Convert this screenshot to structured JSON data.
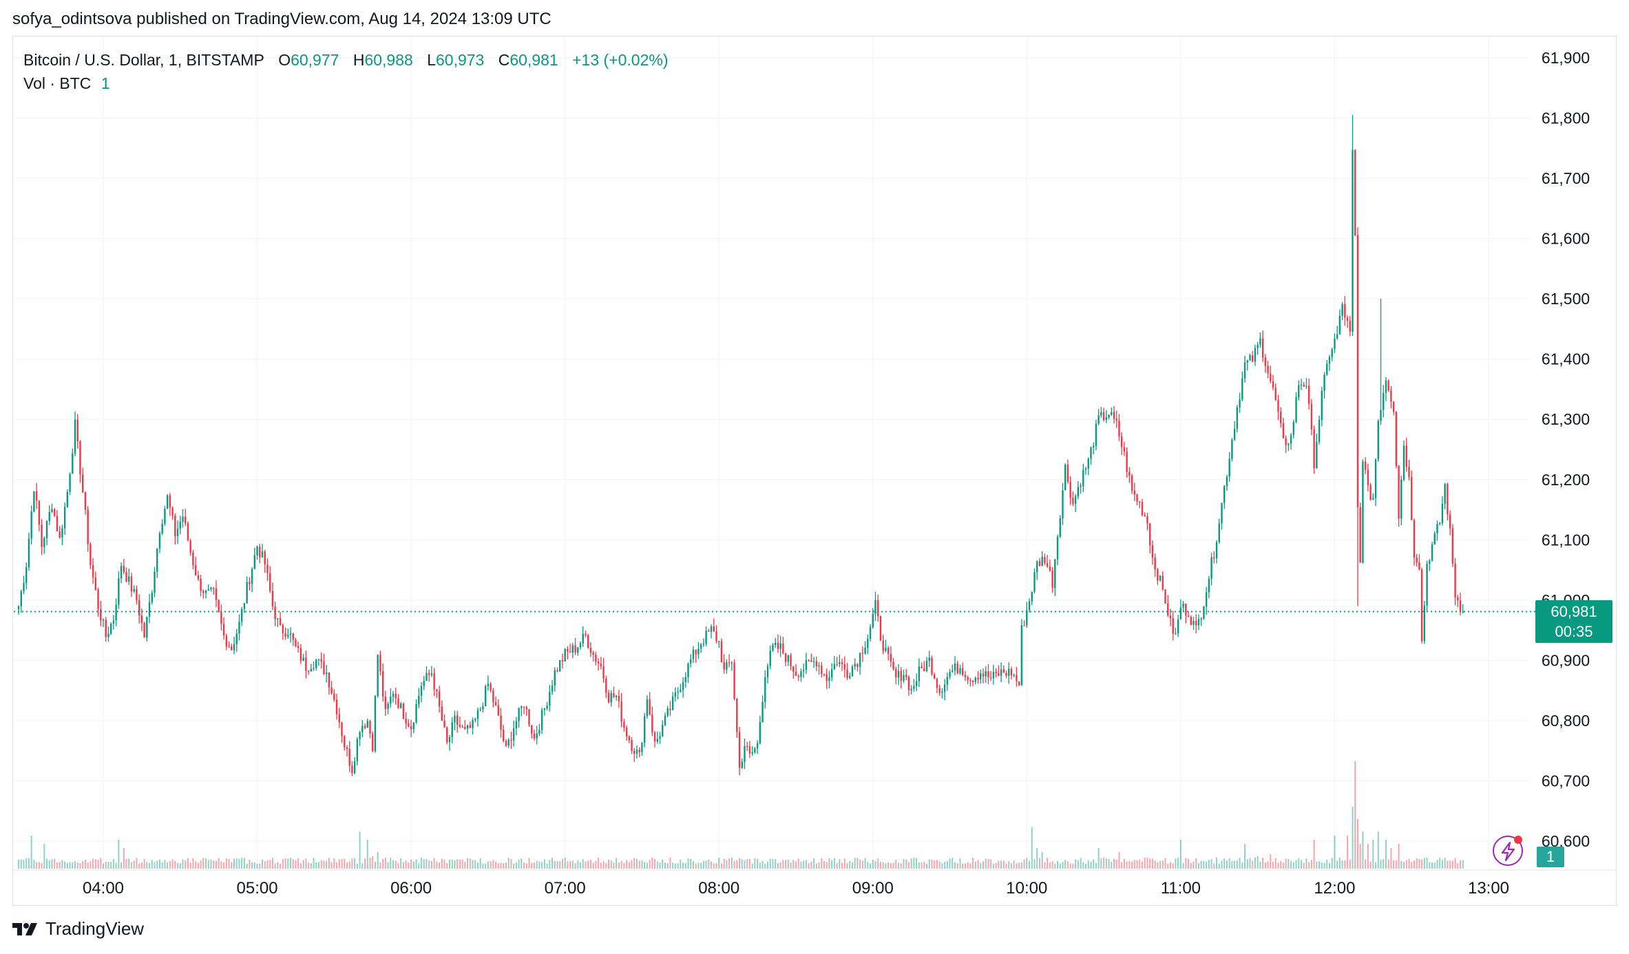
{
  "header": {
    "publisher_text": "sofya_odintsova published on TradingView.com, Aug 14, 2024 13:09 UTC"
  },
  "legend": {
    "symbol": "Bitcoin / U.S. Dollar, 1, BITSTAMP",
    "open_label": "O",
    "open_value": "60,977",
    "high_label": "H",
    "high_value": "60,988",
    "low_label": "L",
    "low_value": "60,973",
    "close_label": "C",
    "close_value": "60,981",
    "change": "+13 (+0.02%)",
    "volume_label": "Vol · BTC",
    "volume_value": "1"
  },
  "price_tag": {
    "price": "60,981",
    "countdown": "00:35"
  },
  "volume_tag": "1",
  "footer": {
    "brand": "TradingView"
  },
  "colors": {
    "up": "#089981",
    "down": "#f23645",
    "grid": "#f0f3fa",
    "axis_text": "#131722"
  },
  "chart_data": {
    "type": "candlestick",
    "interval_minutes": 1,
    "y_ticks": [
      "61,900",
      "61,800",
      "61,700",
      "61,600",
      "61,500",
      "61,400",
      "61,300",
      "61,200",
      "61,100",
      "61,000",
      "60,900",
      "60,800",
      "60,700",
      "60,600"
    ],
    "y_tick_values": [
      61900,
      61800,
      61700,
      61600,
      61500,
      61400,
      61300,
      61200,
      61100,
      61000,
      60900,
      60800,
      60700,
      60600
    ],
    "x_ticks": [
      "04:00",
      "05:00",
      "06:00",
      "07:00",
      "08:00",
      "09:00",
      "10:00",
      "11:00",
      "12:00",
      "13:00"
    ],
    "x_tick_minutes": [
      240,
      300,
      360,
      420,
      480,
      540,
      600,
      660,
      720,
      780
    ],
    "ylim": [
      60560,
      61960
    ],
    "xlim": [
      206,
      797
    ],
    "last_price": 60981,
    "waypoints": [
      [
        207,
        60990
      ],
      [
        210,
        61060
      ],
      [
        213,
        61190
      ],
      [
        216,
        61090
      ],
      [
        220,
        61160
      ],
      [
        223,
        61100
      ],
      [
        226,
        61180
      ],
      [
        229,
        61290
      ],
      [
        232,
        61180
      ],
      [
        235,
        61060
      ],
      [
        238,
        60990
      ],
      [
        241,
        60940
      ],
      [
        244,
        60970
      ],
      [
        247,
        61060
      ],
      [
        250,
        61030
      ],
      [
        253,
        61000
      ],
      [
        256,
        60940
      ],
      [
        259,
        61020
      ],
      [
        262,
        61120
      ],
      [
        265,
        61170
      ],
      [
        268,
        61110
      ],
      [
        271,
        61140
      ],
      [
        274,
        61080
      ],
      [
        277,
        61030
      ],
      [
        280,
        61010
      ],
      [
        283,
        61010
      ],
      [
        287,
        60940
      ],
      [
        290,
        60920
      ],
      [
        293,
        60960
      ],
      [
        296,
        61020
      ],
      [
        300,
        61090
      ],
      [
        303,
        61060
      ],
      [
        306,
        60990
      ],
      [
        309,
        60950
      ],
      [
        312,
        60950
      ],
      [
        315,
        60920
      ],
      [
        319,
        60890
      ],
      [
        323,
        60900
      ],
      [
        327,
        60880
      ],
      [
        331,
        60820
      ],
      [
        334,
        60760
      ],
      [
        337,
        60720
      ],
      [
        340,
        60790
      ],
      [
        343,
        60800
      ],
      [
        345,
        60760
      ],
      [
        347,
        60910
      ],
      [
        350,
        60810
      ],
      [
        353,
        60850
      ],
      [
        356,
        60820
      ],
      [
        360,
        60790
      ],
      [
        364,
        60860
      ],
      [
        368,
        60880
      ],
      [
        371,
        60820
      ],
      [
        374,
        60760
      ],
      [
        377,
        60800
      ],
      [
        381,
        60780
      ],
      [
        384,
        60790
      ],
      [
        387,
        60820
      ],
      [
        390,
        60860
      ],
      [
        393,
        60820
      ],
      [
        397,
        60750
      ],
      [
        400,
        60790
      ],
      [
        404,
        60830
      ],
      [
        408,
        60770
      ],
      [
        412,
        60820
      ],
      [
        416,
        60880
      ],
      [
        420,
        60910
      ],
      [
        424,
        60920
      ],
      [
        428,
        60940
      ],
      [
        431,
        60910
      ],
      [
        434,
        60890
      ],
      [
        437,
        60840
      ],
      [
        440,
        60840
      ],
      [
        443,
        60790
      ],
      [
        446,
        60760
      ],
      [
        449,
        60740
      ],
      [
        452,
        60840
      ],
      [
        455,
        60760
      ],
      [
        458,
        60790
      ],
      [
        461,
        60820
      ],
      [
        465,
        60860
      ],
      [
        469,
        60900
      ],
      [
        473,
        60930
      ],
      [
        477,
        60950
      ],
      [
        480,
        60930
      ],
      [
        482,
        60880
      ],
      [
        485,
        60900
      ],
      [
        488,
        60720
      ],
      [
        490,
        60760
      ],
      [
        492,
        60740
      ],
      [
        495,
        60760
      ],
      [
        498,
        60880
      ],
      [
        501,
        60920
      ],
      [
        504,
        60920
      ],
      [
        507,
        60900
      ],
      [
        510,
        60880
      ],
      [
        514,
        60890
      ],
      [
        518,
        60900
      ],
      [
        522,
        60870
      ],
      [
        526,
        60900
      ],
      [
        530,
        60880
      ],
      [
        534,
        60900
      ],
      [
        538,
        60940
      ],
      [
        541,
        60990
      ],
      [
        543,
        60940
      ],
      [
        546,
        60900
      ],
      [
        549,
        60870
      ],
      [
        552,
        60880
      ],
      [
        555,
        60850
      ],
      [
        558,
        60880
      ],
      [
        562,
        60900
      ],
      [
        566,
        60850
      ],
      [
        570,
        60880
      ],
      [
        574,
        60890
      ],
      [
        578,
        60870
      ],
      [
        582,
        60880
      ],
      [
        586,
        60870
      ],
      [
        590,
        60880
      ],
      [
        594,
        60880
      ],
      [
        597,
        60860
      ],
      [
        598,
        60950
      ],
      [
        601,
        61000
      ],
      [
        604,
        61060
      ],
      [
        607,
        61070
      ],
      [
        610,
        61030
      ],
      [
        612,
        61110
      ],
      [
        615,
        61220
      ],
      [
        618,
        61160
      ],
      [
        621,
        61200
      ],
      [
        624,
        61230
      ],
      [
        628,
        61300
      ],
      [
        632,
        61310
      ],
      [
        635,
        61290
      ],
      [
        638,
        61240
      ],
      [
        641,
        61180
      ],
      [
        644,
        61160
      ],
      [
        647,
        61130
      ],
      [
        649,
        61070
      ],
      [
        652,
        61030
      ],
      [
        654,
        61000
      ],
      [
        656,
        60960
      ],
      [
        658,
        60940
      ],
      [
        660,
        60990
      ],
      [
        663,
        60980
      ],
      [
        666,
        60950
      ],
      [
        668,
        60980
      ],
      [
        670,
        61020
      ],
      [
        673,
        61080
      ],
      [
        676,
        61160
      ],
      [
        679,
        61240
      ],
      [
        682,
        61320
      ],
      [
        685,
        61390
      ],
      [
        688,
        61400
      ],
      [
        691,
        61430
      ],
      [
        694,
        61380
      ],
      [
        697,
        61330
      ],
      [
        700,
        61260
      ],
      [
        703,
        61270
      ],
      [
        706,
        61360
      ],
      [
        709,
        61360
      ],
      [
        712,
        61230
      ],
      [
        715,
        61340
      ],
      [
        718,
        61410
      ],
      [
        721,
        61440
      ],
      [
        723,
        61490
      ],
      [
        726,
        61440
      ],
      [
        727,
        61740
      ],
      [
        728,
        61600
      ],
      [
        729,
        61150
      ],
      [
        730,
        61060
      ],
      [
        731,
        61240
      ],
      [
        733,
        61180
      ],
      [
        735,
        61170
      ],
      [
        737,
        61300
      ],
      [
        740,
        61370
      ],
      [
        743,
        61320
      ],
      [
        745,
        61140
      ],
      [
        747,
        61260
      ],
      [
        749,
        61200
      ],
      [
        751,
        61080
      ],
      [
        753,
        61060
      ],
      [
        754,
        60930
      ],
      [
        756,
        61060
      ],
      [
        758,
        61090
      ],
      [
        761,
        61130
      ],
      [
        763,
        61190
      ],
      [
        765,
        61110
      ],
      [
        767,
        61010
      ],
      [
        770,
        60980
      ]
    ],
    "volume_spikes": [
      [
        212,
        0.8
      ],
      [
        217,
        0.6
      ],
      [
        246,
        0.7
      ],
      [
        248,
        0.5
      ],
      [
        340,
        0.9
      ],
      [
        343,
        0.7
      ],
      [
        345,
        0.3
      ],
      [
        347,
        0.4
      ],
      [
        602,
        1.0
      ],
      [
        604,
        0.5
      ],
      [
        606,
        0.4
      ],
      [
        628,
        0.5
      ],
      [
        636,
        0.4
      ],
      [
        660,
        0.7
      ],
      [
        685,
        0.6
      ],
      [
        690,
        0.3
      ],
      [
        695,
        0.35
      ],
      [
        712,
        0.7
      ],
      [
        720,
        0.8
      ],
      [
        725,
        0.8
      ],
      [
        727,
        1.5
      ],
      [
        728,
        2.6
      ],
      [
        729,
        1.2
      ],
      [
        730,
        0.6
      ],
      [
        731,
        0.9
      ],
      [
        733,
        0.6
      ],
      [
        735,
        0.7
      ],
      [
        737,
        0.9
      ],
      [
        740,
        0.7
      ],
      [
        742,
        0.5
      ],
      [
        745,
        0.6
      ]
    ]
  }
}
